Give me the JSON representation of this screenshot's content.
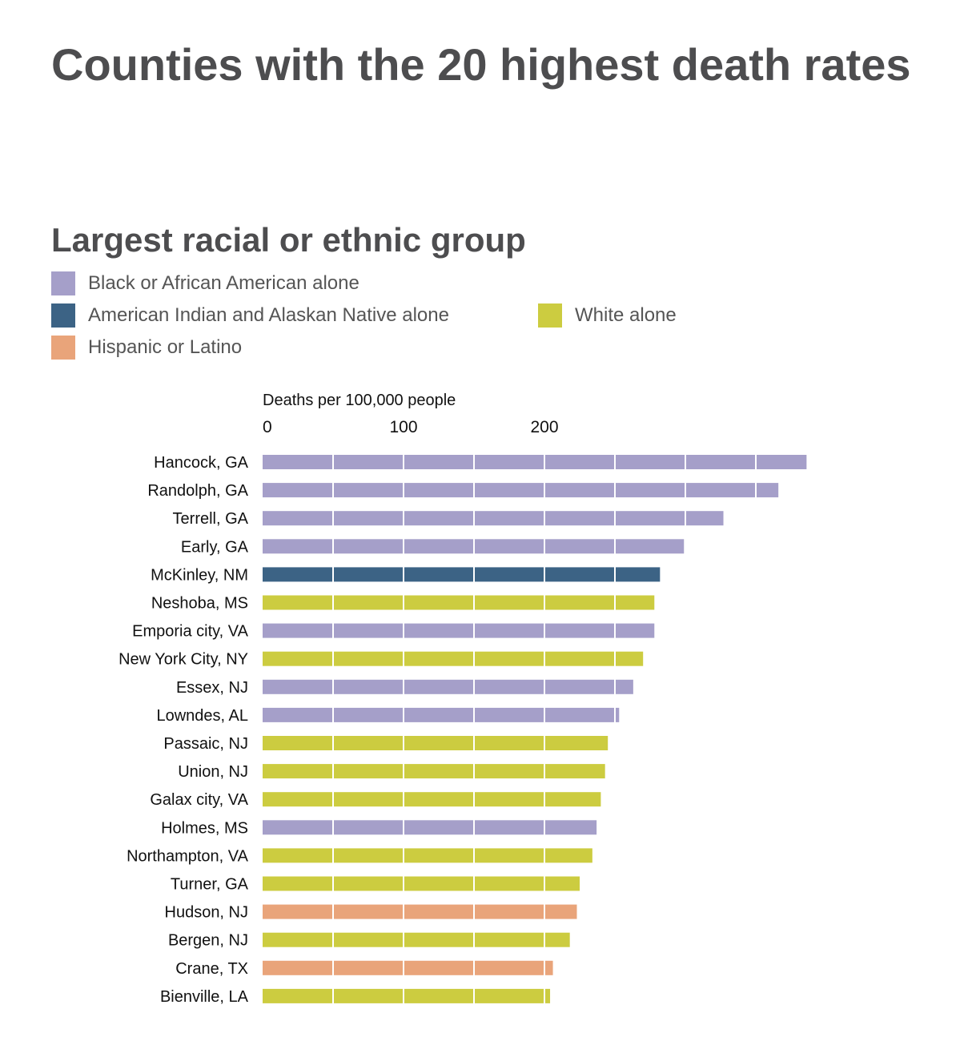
{
  "header": {
    "title": "Counties with the 20 highest death rates",
    "subtitle": "Largest racial or ethnic group"
  },
  "legend": {
    "items": [
      {
        "label": "Black or African American alone",
        "color": "#a59fc9"
      },
      {
        "label": "American Indian and Alaskan Native alone",
        "color": "#3c6385"
      },
      {
        "label": "White alone",
        "color": "#cccc40"
      },
      {
        "label": "Hispanic or Latino",
        "color": "#e9a47a"
      }
    ]
  },
  "chart_data": {
    "type": "bar",
    "orientation": "horizontal",
    "xlabel": "Deaths per 100,000 people",
    "xlim": [
      0,
      390
    ],
    "xticks": [
      0,
      100,
      200
    ],
    "categories": [
      "Hancock, GA",
      "Randolph, GA",
      "Terrell, GA",
      "Early, GA",
      "McKinley, NM",
      "Neshoba, MS",
      "Emporia city, VA",
      "New York City, NY",
      "Essex, NJ",
      "Lowndes, AL",
      "Passaic, NJ",
      "Union, NJ",
      "Galax city, VA",
      "Holmes, MS",
      "Northampton, VA",
      "Turner, GA",
      "Hudson, NJ",
      "Bergen, NJ",
      "Crane, TX",
      "Bienville, LA"
    ],
    "values": [
      386,
      366,
      327,
      299,
      282,
      278,
      278,
      270,
      263,
      253,
      245,
      243,
      240,
      237,
      234,
      225,
      223,
      218,
      206,
      204
    ],
    "groups": [
      "Black or African American alone",
      "Black or African American alone",
      "Black or African American alone",
      "Black or African American alone",
      "American Indian and Alaskan Native alone",
      "White alone",
      "Black or African American alone",
      "White alone",
      "Black or African American alone",
      "Black or African American alone",
      "White alone",
      "White alone",
      "White alone",
      "Black or African American alone",
      "White alone",
      "White alone",
      "Hispanic or Latino",
      "White alone",
      "Hispanic or Latino",
      "White alone"
    ],
    "grid": true
  }
}
